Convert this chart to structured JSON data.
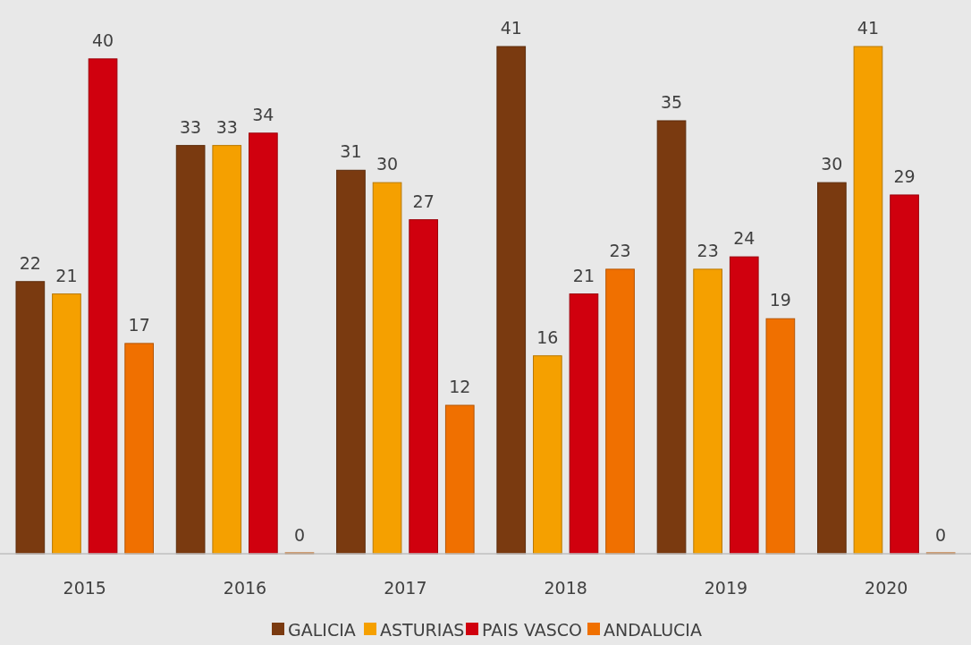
{
  "chart_data": {
    "type": "bar",
    "categories": [
      "2015",
      "2016",
      "2017",
      "2018",
      "2019",
      "2020"
    ],
    "series": [
      {
        "name": "GALICIA",
        "color": "#7a3a10",
        "values": [
          22,
          33,
          31,
          41,
          35,
          30
        ]
      },
      {
        "name": "ASTURIAS",
        "color": "#f5a000",
        "values": [
          21,
          33,
          30,
          16,
          23,
          41
        ]
      },
      {
        "name": "PAIS VASCO",
        "color": "#d0000e",
        "values": [
          40,
          34,
          27,
          21,
          24,
          29
        ]
      },
      {
        "name": "ANDALUCIA",
        "color": "#f07000",
        "values": [
          17,
          0,
          12,
          23,
          19,
          0
        ]
      }
    ],
    "data_labels": true,
    "legend": "bottom"
  }
}
